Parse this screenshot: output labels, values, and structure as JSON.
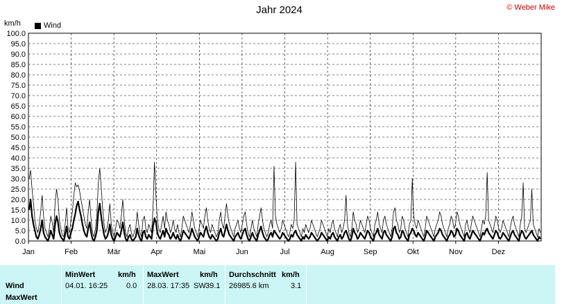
{
  "title": "Jahr 2024",
  "copyright": "© Weber Mike",
  "unit": "km/h",
  "stats": {
    "row_labels": [
      "Wind",
      "MaxWert"
    ],
    "min": {
      "header": "MinWert",
      "unit": "km/h",
      "time": "04.01.  16:25",
      "value": "0.0"
    },
    "max": {
      "header": "MaxWert",
      "unit": "km/h",
      "time": "28.03.  17:35",
      "dir": "SW",
      "value": "39.1"
    },
    "avg": {
      "header": "Durchschnitt",
      "unit": "km/h",
      "distance": "26985.6 km",
      "value": "3.1"
    }
  },
  "chart_data": {
    "type": "line",
    "title": "Jahr 2024",
    "ylabel": "km/h",
    "ylim": [
      0,
      100
    ],
    "yticks": [
      "0.0",
      "5.0",
      "10.0",
      "15.0",
      "20.0",
      "25.0",
      "30.0",
      "35.0",
      "40.0",
      "45.0",
      "50.0",
      "55.0",
      "60.0",
      "65.0",
      "70.0",
      "75.0",
      "80.0",
      "85.0",
      "90.0",
      "95.0",
      "100.0"
    ],
    "months": [
      "Jan",
      "Feb",
      "Mär",
      "Apr",
      "Mai",
      "Jun",
      "Jul",
      "Aug",
      "Sep",
      "Okt",
      "Nov",
      "Dez"
    ],
    "grid": true,
    "legend_position": "top-left",
    "series": [
      {
        "name": "Wind",
        "description": "Daily mean wind speed",
        "color": "#000000",
        "values": [
          15,
          20,
          12,
          8,
          5,
          2,
          1,
          3,
          6,
          10,
          4,
          2,
          1,
          0,
          2,
          5,
          3,
          1,
          8,
          12,
          9,
          4,
          2,
          1,
          0,
          3,
          7,
          2,
          1,
          4,
          6,
          10,
          13,
          17,
          19,
          15,
          12,
          8,
          5,
          3,
          2,
          6,
          9,
          4,
          1,
          0,
          2,
          5,
          14,
          18,
          12,
          7,
          3,
          1,
          2,
          4,
          8,
          3,
          1,
          0,
          2,
          4,
          3,
          2,
          5,
          9,
          4,
          1,
          0,
          2,
          3,
          1,
          0,
          1,
          2,
          6,
          3,
          1,
          0,
          4,
          5,
          2,
          1,
          3,
          2,
          1,
          7,
          11,
          9,
          4,
          2,
          1,
          3,
          5,
          2,
          6,
          4,
          3,
          1,
          2,
          4,
          2,
          1,
          3,
          1,
          0,
          2,
          5,
          4,
          3,
          2,
          1,
          3,
          6,
          4,
          2,
          1,
          0,
          2,
          4,
          3,
          2,
          5,
          7,
          4,
          2,
          1,
          3,
          2,
          1,
          0,
          1,
          4,
          6,
          3,
          2,
          5,
          8,
          5,
          3,
          2,
          1,
          0,
          2,
          3,
          4,
          2,
          1,
          3,
          5,
          6,
          3,
          1,
          0,
          2,
          4,
          2,
          1,
          0,
          3,
          5,
          7,
          4,
          2,
          1,
          0,
          1,
          3,
          4,
          2,
          5,
          4,
          3,
          2,
          1,
          2,
          4,
          3,
          2,
          1,
          0,
          1,
          3,
          2,
          4,
          5,
          3,
          2,
          1,
          0,
          2,
          1,
          3,
          2,
          1,
          2,
          4,
          3,
          2,
          1,
          0,
          1,
          2,
          4,
          3,
          2,
          1,
          0,
          2,
          1,
          3,
          4,
          2,
          1,
          0,
          2,
          3,
          1,
          2,
          4,
          5,
          3,
          1,
          0,
          2,
          6,
          4,
          3,
          1,
          2,
          4,
          3,
          2,
          1,
          3,
          5,
          4,
          2,
          1,
          0,
          3,
          4,
          6,
          3,
          2,
          1,
          4,
          5,
          3,
          2,
          1,
          0,
          2,
          6,
          7,
          4,
          3,
          1,
          2,
          5,
          4,
          2,
          1,
          0,
          3,
          4,
          6,
          5,
          3,
          2,
          4,
          3,
          2,
          1,
          0,
          2,
          5,
          4,
          3,
          2,
          1,
          0,
          2,
          3,
          4,
          6,
          5,
          3,
          2,
          1,
          0,
          2,
          3,
          5,
          4,
          2,
          3,
          6,
          5,
          3,
          2,
          1,
          0,
          3,
          4,
          2,
          1,
          3,
          5,
          4,
          3,
          2,
          1,
          0,
          2,
          4,
          3,
          5,
          6,
          4,
          3,
          2,
          1,
          3,
          5,
          4,
          2,
          1,
          2,
          4,
          3,
          2,
          1,
          0,
          2,
          4,
          5,
          3,
          2,
          1,
          0,
          3,
          5,
          4,
          2,
          1,
          2,
          3,
          4,
          5,
          3,
          2,
          1,
          0,
          2,
          1
        ]
      },
      {
        "name": "MaxWert",
        "description": "Daily maximum wind speed (thin line)",
        "color": "#000000",
        "values": [
          30,
          34,
          25,
          18,
          10,
          6,
          4,
          8,
          14,
          22,
          12,
          6,
          4,
          2,
          6,
          12,
          9,
          4,
          18,
          25,
          20,
          10,
          6,
          3,
          2,
          8,
          16,
          6,
          4,
          10,
          14,
          22,
          28,
          26,
          27,
          24,
          20,
          16,
          12,
          8,
          6,
          14,
          20,
          10,
          4,
          2,
          6,
          12,
          28,
          35,
          26,
          16,
          8,
          4,
          6,
          10,
          18,
          8,
          4,
          2,
          6,
          10,
          9,
          6,
          12,
          20,
          10,
          4,
          2,
          6,
          8,
          4,
          2,
          4,
          6,
          14,
          8,
          4,
          2,
          10,
          12,
          6,
          4,
          8,
          6,
          4,
          16,
          38,
          22,
          10,
          6,
          4,
          8,
          12,
          6,
          14,
          10,
          8,
          4,
          6,
          10,
          6,
          4,
          8,
          4,
          2,
          6,
          12,
          10,
          8,
          6,
          4,
          8,
          14,
          10,
          6,
          4,
          2,
          6,
          10,
          8,
          6,
          12,
          16,
          10,
          6,
          4,
          8,
          6,
          4,
          2,
          4,
          10,
          14,
          8,
          6,
          12,
          18,
          12,
          8,
          6,
          4,
          2,
          6,
          8,
          10,
          6,
          4,
          8,
          12,
          14,
          8,
          4,
          2,
          6,
          10,
          6,
          4,
          2,
          8,
          12,
          16,
          10,
          6,
          4,
          2,
          4,
          8,
          10,
          6,
          36,
          12,
          8,
          6,
          4,
          6,
          10,
          8,
          6,
          4,
          2,
          4,
          8,
          6,
          10,
          38,
          8,
          6,
          4,
          2,
          6,
          4,
          8,
          6,
          4,
          6,
          10,
          8,
          6,
          4,
          2,
          4,
          6,
          10,
          8,
          6,
          4,
          2,
          6,
          4,
          8,
          10,
          6,
          4,
          2,
          6,
          8,
          4,
          6,
          10,
          22,
          8,
          4,
          2,
          6,
          14,
          10,
          8,
          4,
          6,
          10,
          8,
          6,
          4,
          8,
          12,
          10,
          6,
          4,
          2,
          8,
          10,
          14,
          8,
          6,
          4,
          10,
          12,
          8,
          6,
          4,
          2,
          6,
          14,
          16,
          10,
          8,
          4,
          6,
          12,
          10,
          6,
          4,
          2,
          8,
          10,
          30,
          12,
          8,
          6,
          10,
          8,
          6,
          4,
          2,
          6,
          12,
          10,
          8,
          6,
          4,
          2,
          6,
          8,
          10,
          14,
          12,
          8,
          6,
          4,
          2,
          6,
          8,
          12,
          10,
          6,
          8,
          14,
          12,
          8,
          6,
          4,
          2,
          8,
          10,
          6,
          4,
          8,
          12,
          10,
          8,
          6,
          4,
          2,
          6,
          10,
          8,
          12,
          33,
          10,
          8,
          6,
          4,
          8,
          12,
          10,
          6,
          4,
          6,
          10,
          8,
          6,
          4,
          2,
          6,
          10,
          12,
          8,
          6,
          4,
          2,
          8,
          12,
          28,
          6,
          4,
          6,
          8,
          10,
          25,
          8,
          6,
          4,
          2,
          6,
          4
        ]
      }
    ]
  }
}
